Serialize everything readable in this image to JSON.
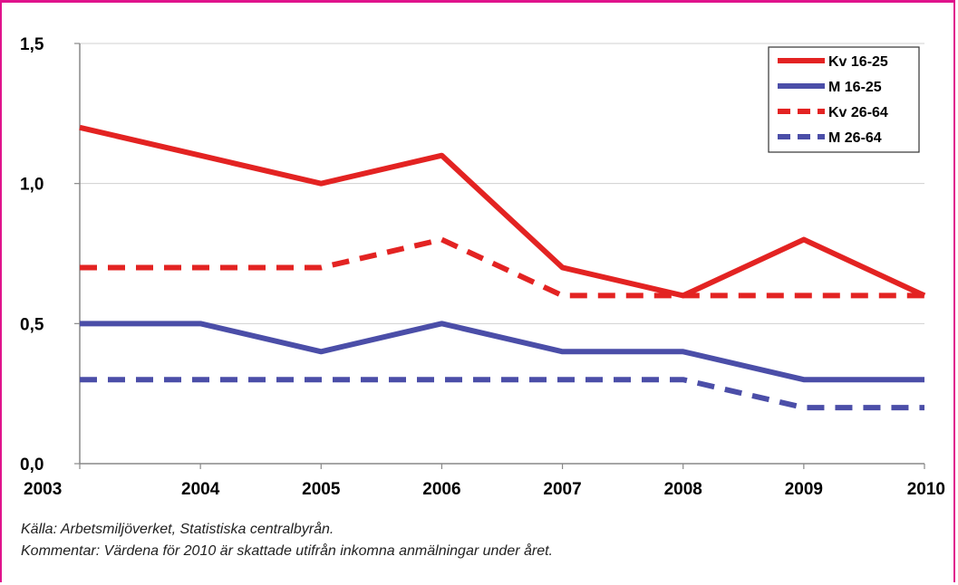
{
  "chart_data": {
    "type": "line",
    "x": [
      "2003",
      "2004",
      "2005",
      "2006",
      "2007",
      "2008",
      "2009",
      "2010"
    ],
    "ylim": [
      0.0,
      1.5
    ],
    "yticks": [
      "0,0",
      "0,5",
      "1,0",
      "1,5"
    ],
    "ytick_values": [
      0.0,
      0.5,
      1.0,
      1.5
    ],
    "grid": "horizontal",
    "legend_position": "top-right",
    "series": [
      {
        "name": "Kv 16-25",
        "values": [
          1.2,
          1.1,
          1.0,
          1.1,
          0.7,
          0.6,
          0.8,
          0.6
        ],
        "color": "#e32322",
        "style": "solid"
      },
      {
        "name": "M 16-25",
        "values": [
          0.5,
          0.5,
          0.4,
          0.5,
          0.4,
          0.4,
          0.3,
          0.3
        ],
        "color": "#4b4ea8",
        "style": "solid"
      },
      {
        "name": "Kv 26-64",
        "values": [
          0.7,
          0.7,
          0.7,
          0.8,
          0.6,
          0.6,
          0.6,
          0.6
        ],
        "color": "#e32322",
        "style": "dashed"
      },
      {
        "name": "M 26-64",
        "values": [
          0.3,
          0.3,
          0.3,
          0.3,
          0.3,
          0.3,
          0.2,
          0.2
        ],
        "color": "#4b4ea8",
        "style": "dashed"
      }
    ]
  },
  "notes": {
    "source": "Källa: Arbetsmiljöverket, Statistiska centralbyrån.",
    "comment": "Kommentar: Värdena för 2010 är skattade utifrån inkomna anmälningar under året."
  }
}
